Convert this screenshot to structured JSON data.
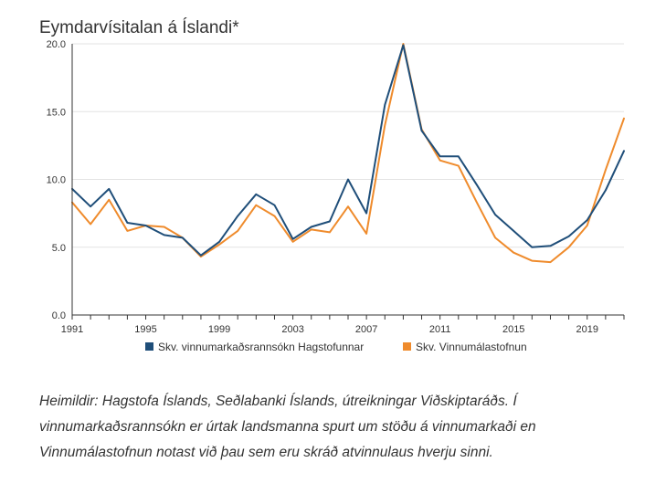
{
  "chart_data": {
    "type": "line",
    "title": "Eymdarvísitalan á Íslandi*",
    "xlabel": "",
    "ylabel": "",
    "xlim": [
      1991,
      2021
    ],
    "ylim": [
      0,
      20
    ],
    "x_ticks": [
      "1991",
      "1995",
      "1999",
      "2003",
      "2007",
      "2011",
      "2015",
      "2019"
    ],
    "y_ticks": [
      "0.0",
      "5.0",
      "10.0",
      "15.0",
      "20.0"
    ],
    "grid": true,
    "legend_position": "bottom",
    "x": [
      1991,
      1992,
      1993,
      1994,
      1995,
      1996,
      1997,
      1998,
      1999,
      2000,
      2001,
      2002,
      2003,
      2004,
      2005,
      2006,
      2007,
      2008,
      2009,
      2010,
      2011,
      2012,
      2013,
      2014,
      2015,
      2016,
      2017,
      2018,
      2019,
      2020,
      2021
    ],
    "series": [
      {
        "name": "Skv. vinnumarkaðsrannsókn Hagstofunnar",
        "color": "#1f4e79",
        "values": [
          9.3,
          8.0,
          9.3,
          6.8,
          6.6,
          5.9,
          5.7,
          4.4,
          5.4,
          7.3,
          8.9,
          8.1,
          5.6,
          6.5,
          6.9,
          10.0,
          7.5,
          15.5,
          19.9,
          13.6,
          11.7,
          11.7,
          9.6,
          7.4,
          6.2,
          5.0,
          5.1,
          5.8,
          7.0,
          9.2,
          12.1
        ]
      },
      {
        "name": "Skv. Vinnumálastofnun",
        "color": "#ef8b2c",
        "values": [
          8.3,
          6.7,
          8.5,
          6.2,
          6.6,
          6.5,
          5.7,
          4.3,
          5.2,
          6.2,
          8.1,
          7.3,
          5.4,
          6.3,
          6.1,
          8.0,
          6.0,
          14.0,
          20.0,
          13.7,
          11.4,
          11.0,
          8.3,
          5.7,
          4.6,
          4.0,
          3.9,
          5.0,
          6.6,
          10.7,
          14.5
        ]
      }
    ]
  },
  "footnote": "Heimildir: Hagstofa Íslands, Seðlabanki Íslands, útreikningar Viðskiptaráðs. Í vinnumarkaðsrannsókn er úrtak landsmanna spurt um stöðu á vinnumarkaði en Vinnumálastofnun notast við þau sem eru skráð atvinnulaus hverju sinni."
}
